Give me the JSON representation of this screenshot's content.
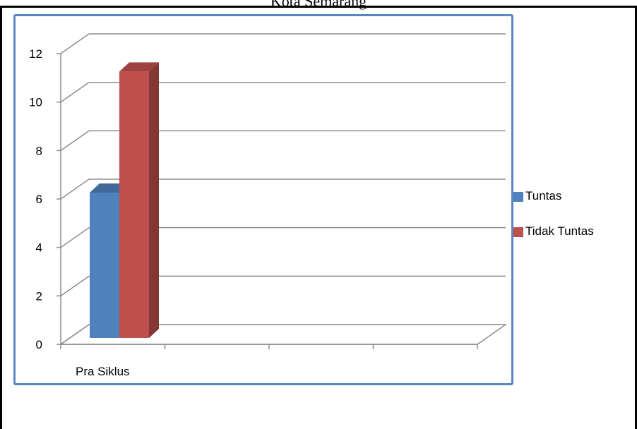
{
  "page": {
    "title": "Kota Semarang"
  },
  "chart_data": {
    "type": "bar",
    "categories": [
      "Pra Siklus"
    ],
    "series": [
      {
        "name": "Tuntas",
        "values": [
          6
        ],
        "color": "#4f81bd"
      },
      {
        "name": "Tidak Tuntas",
        "values": [
          11
        ],
        "color": "#c0504d"
      }
    ],
    "ylim": [
      0,
      12
    ],
    "yticks": [
      0,
      2,
      4,
      6,
      8,
      10,
      12
    ],
    "grid": true,
    "three_d": true,
    "legend_position": "right"
  }
}
